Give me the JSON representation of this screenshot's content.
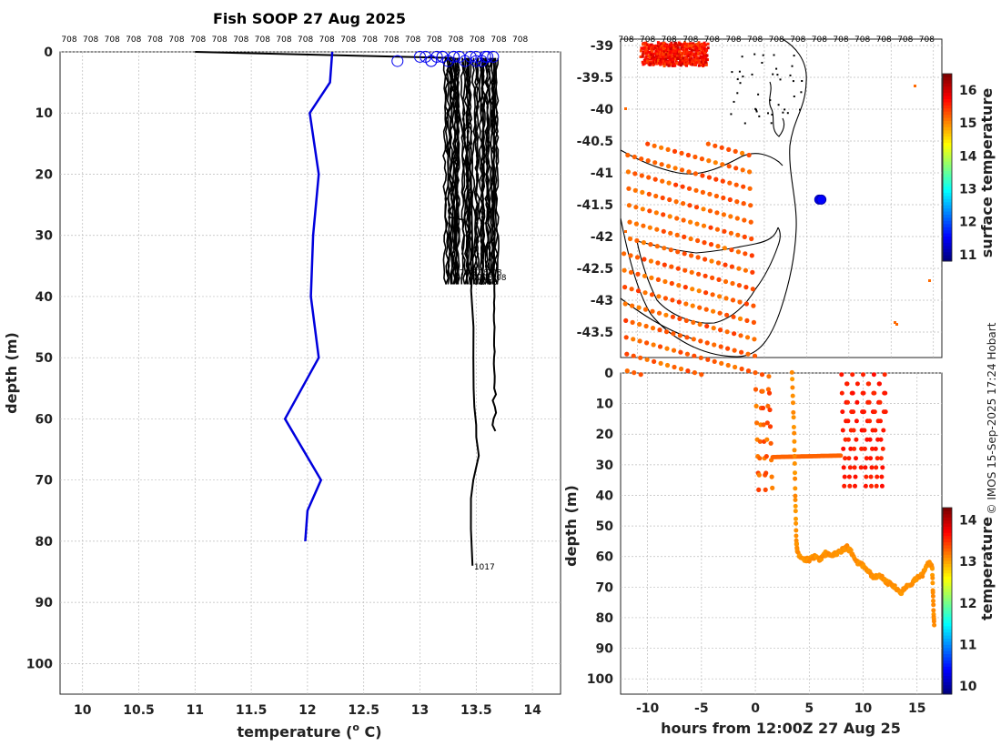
{
  "title": "Fish SOOP 27 Aug 2025",
  "copyright": "© IMOS 15-Sep-2025 17:24 Hobart",
  "profile_label": "708",
  "deep_label": "1017",
  "chart_data": [
    {
      "type": "line",
      "name": "profile",
      "xlabel": "temperature (",
      "xlabel_sup": "o",
      "xlabel_tail": " C)",
      "ylabel": "depth (m)",
      "xlim": [
        9.8,
        14.25
      ],
      "ylim": [
        105,
        0
      ],
      "xticks": [
        10,
        10.5,
        11,
        11.5,
        12,
        12.5,
        13,
        13.5,
        14
      ],
      "yticks": [
        0,
        10,
        20,
        30,
        40,
        50,
        60,
        70,
        80,
        90,
        100
      ],
      "grid": true,
      "series": [
        {
          "color": "#0000dd",
          "x": [
            12.22,
            12.2,
            12.02,
            12.1,
            12.05,
            12.03,
            12.1,
            11.8,
            12.12,
            12.0,
            11.98
          ],
          "y": [
            0,
            5,
            10,
            20,
            30,
            40,
            50,
            60,
            70,
            75,
            80
          ]
        }
      ],
      "surface_line": {
        "x": [
          11.0,
          13.3
        ],
        "y": [
          0,
          1
        ]
      },
      "deep_profile": {
        "x": [
          13.25,
          13.3,
          13.45,
          13.47,
          13.46,
          13.47,
          13.47,
          13.48,
          13.48,
          13.5,
          13.5,
          13.52,
          13.47,
          13.46,
          13.45,
          13.46
        ],
        "y": [
          1,
          5,
          20,
          35,
          39,
          45,
          50,
          55,
          58,
          61,
          63,
          66,
          70,
          73,
          78,
          84
        ]
      }
    },
    {
      "type": "heatmap",
      "name": "map",
      "colorbar_label": "surface temperature",
      "colorbar_ticks": [
        11,
        12,
        13,
        14,
        15,
        16
      ],
      "colorbar_range": [
        10.8,
        16.5
      ],
      "xlim": [
        142.6,
        150.2
      ],
      "ylim": [
        -43.9,
        -38.9
      ],
      "yticks": [
        -39,
        -39.5,
        -40,
        -40.5,
        -41,
        -41.5,
        -42,
        -42.5,
        -43,
        -43.5
      ],
      "colorbar_ticks_tick": true,
      "observations": {
        "lon": [
          147.3,
          147.35
        ],
        "lat": [
          -41.42,
          -41.42
        ],
        "color": "#0000ff"
      }
    },
    {
      "type": "scatter",
      "name": "section",
      "xlabel": "hours from 12:00Z 27 Aug 25",
      "ylabel": "depth (m)",
      "colorbar_label": "temperature",
      "colorbar_ticks": [
        10,
        11,
        12,
        13,
        14
      ],
      "colorbar_range": [
        9.8,
        14.3
      ],
      "xlim": [
        -12.5,
        17.3
      ],
      "ylim": [
        105,
        0
      ],
      "xticks": [
        -10,
        -5,
        0,
        5,
        10,
        15
      ],
      "yticks": [
        0,
        10,
        20,
        30,
        40,
        50,
        60,
        70,
        80,
        90,
        100
      ],
      "grid": true,
      "tow_track": {
        "t": [
          3.4,
          3.6,
          3.7,
          3.8,
          3.9,
          4.5,
          5.0,
          5.5,
          6.0,
          6.5,
          7.0,
          7.5,
          8.0,
          8.5,
          9.0,
          9.5,
          10.0,
          10.5,
          11.0,
          11.5,
          12.0,
          12.5,
          13.0,
          13.5,
          14.0,
          14.5,
          15.0,
          15.5,
          16.0,
          16.4,
          16.5,
          16.6
        ],
        "depth": [
          0,
          20,
          40,
          55,
          59,
          61,
          61,
          60,
          61,
          59,
          60,
          59,
          58,
          57,
          59,
          62,
          63,
          65,
          67,
          66,
          68,
          69,
          70,
          72,
          70,
          69,
          67,
          66,
          62,
          63,
          75,
          84
        ]
      }
    }
  ]
}
